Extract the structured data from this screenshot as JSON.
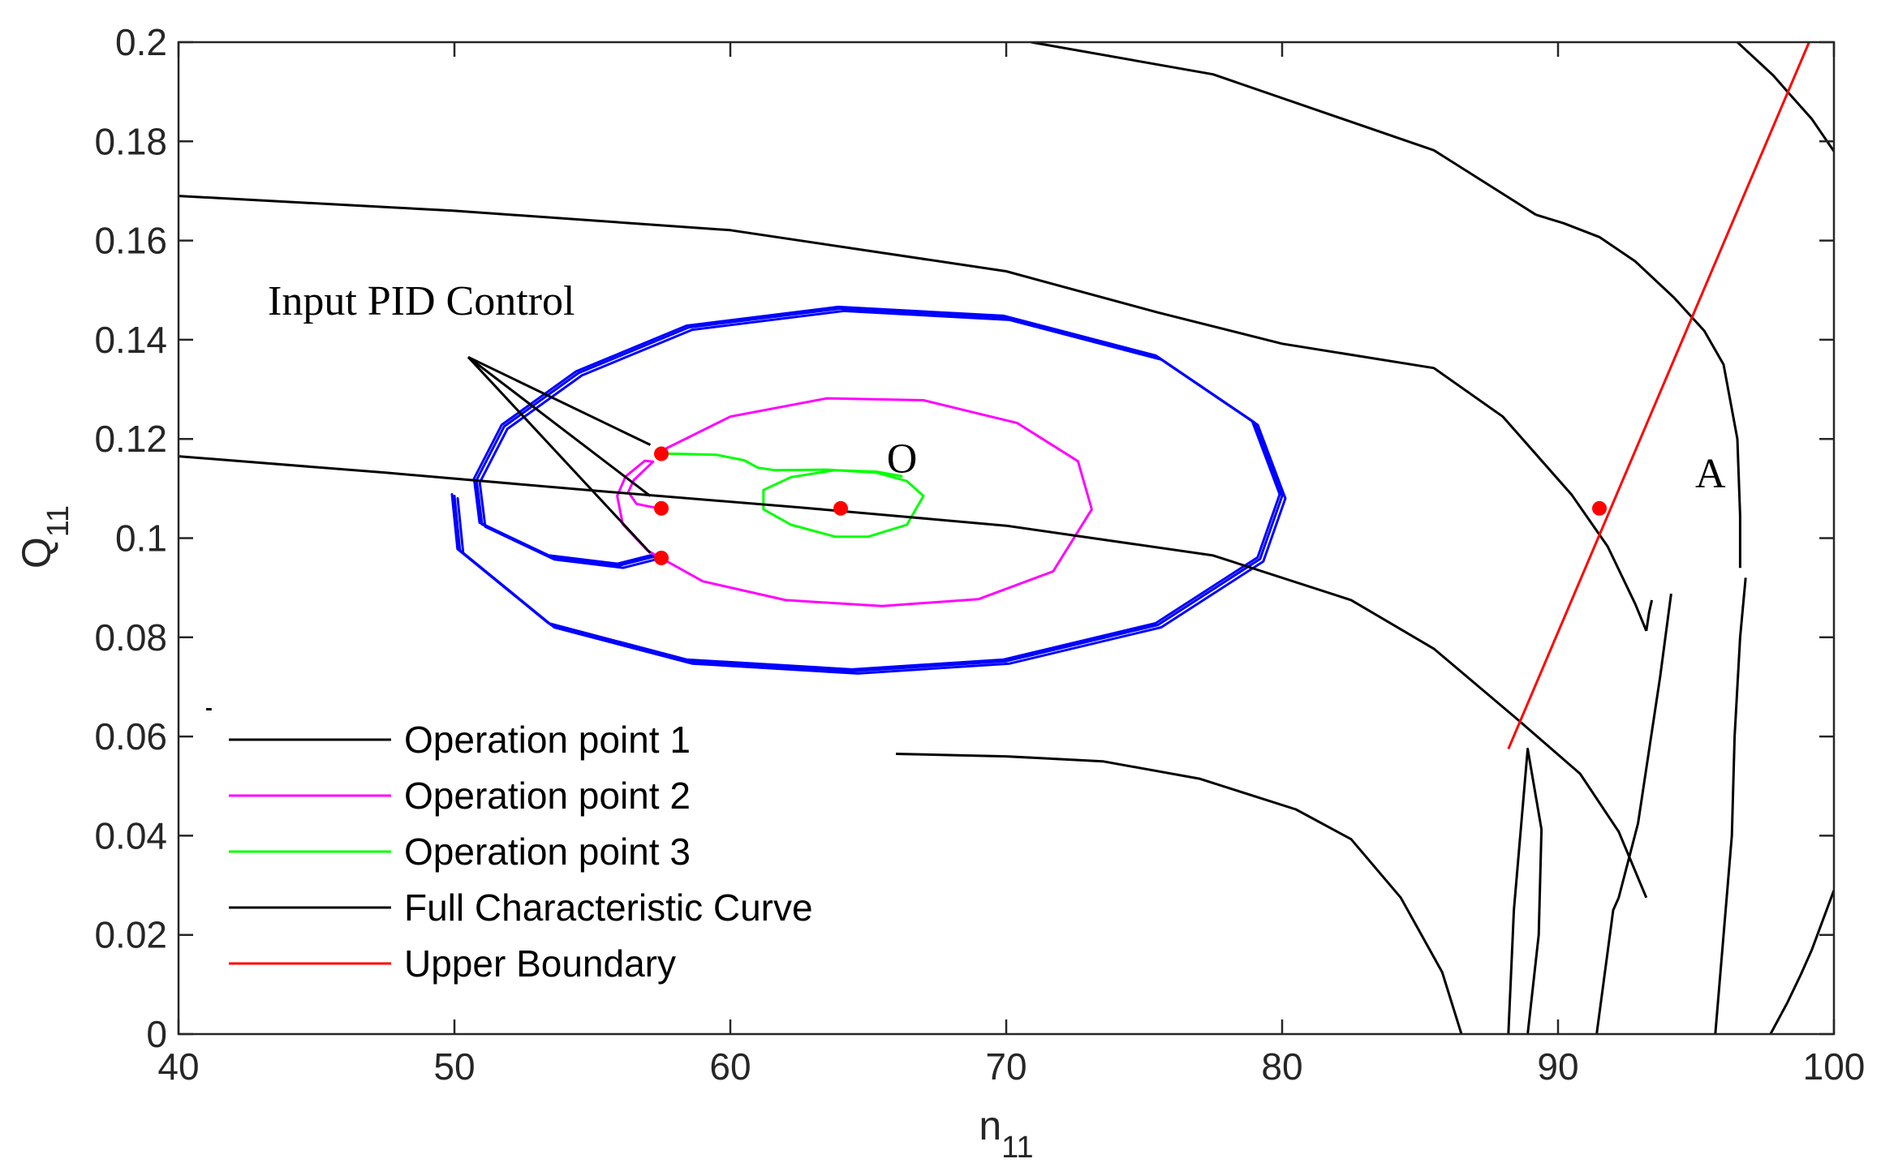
{
  "chart_data": {
    "type": "line",
    "title": "",
    "xlabel": "n",
    "xlabel_sub": "11",
    "ylabel": "Q",
    "ylabel_sub": "11",
    "xlim": [
      40,
      100
    ],
    "ylim": [
      0,
      0.2
    ],
    "grid": false,
    "legend_position": "bottom-left",
    "x_ticks": [
      {
        "value": 40,
        "label": "40"
      },
      {
        "value": 50,
        "label": "50"
      },
      {
        "value": 60,
        "label": "60"
      },
      {
        "value": 70,
        "label": "70"
      },
      {
        "value": 80,
        "label": "80"
      },
      {
        "value": 90,
        "label": "90"
      },
      {
        "value": 100,
        "label": "100"
      }
    ],
    "y_ticks": [
      {
        "value": 0,
        "label": "0"
      },
      {
        "value": 0.02,
        "label": "0.02"
      },
      {
        "value": 0.04,
        "label": "0.04"
      },
      {
        "value": 0.06,
        "label": "0.06"
      },
      {
        "value": 0.08,
        "label": "0.08"
      },
      {
        "value": 0.1,
        "label": "0.1"
      },
      {
        "value": 0.12,
        "label": "0.12"
      },
      {
        "value": 0.14,
        "label": "0.14"
      },
      {
        "value": 0.16,
        "label": "0.16"
      },
      {
        "value": 0.18,
        "label": "0.18"
      },
      {
        "value": 0.2,
        "label": "0.2"
      }
    ],
    "legend": [
      {
        "label": "Operation point 1",
        "color": "#000000"
      },
      {
        "label": "Operation point 2",
        "color": "#ff00ff"
      },
      {
        "label": "Operation point 3",
        "color": "#00ff00"
      },
      {
        "label": "Full Characteristic Curve",
        "color": "#000000"
      },
      {
        "label": "Upper Boundary",
        "color": "#ff0000"
      }
    ],
    "series": [
      {
        "name": "Operation point 1",
        "color": "#0000ff",
        "kind": "trajectory",
        "x": [
          57.5,
          57.2,
          56.0,
          53.5,
          51.0,
          50.8,
          51.8,
          54.5,
          58.5,
          64.0,
          70.0,
          75.5,
          79.0,
          80.0,
          79.2,
          75.5,
          70.0,
          64.5,
          58.5,
          53.5,
          50.2,
          50.0
        ],
        "y": [
          0.096,
          0.0962,
          0.0945,
          0.0962,
          0.1028,
          0.1117,
          0.1225,
          0.1333,
          0.1425,
          0.1463,
          0.1445,
          0.1365,
          0.1233,
          0.1085,
          0.0958,
          0.0825,
          0.0752,
          0.0732,
          0.0752,
          0.0825,
          0.0975,
          0.1085
        ]
      },
      {
        "name": "Operation point 2",
        "color": "#ff00ff",
        "kind": "trajectory",
        "x": [
          57.5,
          57.4,
          56.6,
          56.3,
          56.5,
          57.2,
          56.9,
          56.2,
          55.9,
          56.1,
          57.0,
          59.0,
          62.0,
          65.5,
          69.0,
          71.7,
          73.1,
          72.6,
          70.4,
          67.0,
          63.5,
          60.0,
          57.5
        ],
        "y": [
          0.106,
          0.106,
          0.1069,
          0.1093,
          0.1117,
          0.1154,
          0.1156,
          0.1124,
          0.1085,
          0.1028,
          0.0975,
          0.0913,
          0.0875,
          0.0863,
          0.0877,
          0.0933,
          0.1058,
          0.1155,
          0.1232,
          0.1278,
          0.1282,
          0.1245,
          0.1176
        ]
      },
      {
        "name": "Operation point 3",
        "color": "#00ff00",
        "kind": "trajectory",
        "x": [
          57.5,
          58.0,
          59.5,
          60.5,
          61.0,
          61.6,
          63.5,
          65.3,
          66.4,
          67.0,
          66.4,
          65.0,
          63.8,
          62.2,
          61.2,
          61.2,
          62.2,
          63.8,
          65.3,
          66.2
        ],
        "y": [
          0.117,
          0.117,
          0.1168,
          0.1157,
          0.1142,
          0.1137,
          0.1138,
          0.1132,
          0.1115,
          0.1085,
          0.1027,
          0.1003,
          0.1003,
          0.1027,
          0.1058,
          0.1097,
          0.1123,
          0.1137,
          0.1134,
          0.1125
        ]
      },
      {
        "name": "Full Characteristic Curve",
        "color": "#000000",
        "kind": "curves",
        "curves": [
          {
            "x": [
              40,
              47.5,
              55,
              62.5,
              70,
              77.5,
              82.5,
              85.5,
              88.5,
              90.8,
              92.2,
              93.2
            ],
            "y": [
              0.1165,
              0.1132,
              0.1096,
              0.1062,
              0.1025,
              0.0965,
              0.0875,
              0.0777,
              0.0636,
              0.0525,
              0.0408,
              0.0275
            ]
          },
          {
            "x": [
              40,
              50,
              60,
              70,
              75.5,
              80,
              85.5,
              88,
              90.5,
              91.8,
              92.8,
              93.2
            ],
            "y": [
              0.169,
              0.166,
              0.1621,
              0.1538,
              0.1455,
              0.1392,
              0.1343,
              0.1245,
              0.1087,
              0.0983,
              0.0867,
              0.0813
            ]
          },
          {
            "x": [
              93.2,
              93.3,
              93.4
            ],
            "y": [
              0.0813,
              0.085,
              0.0875
            ]
          },
          {
            "x": [
              41.0,
              41.2
            ],
            "y": [
              0.0655,
              0.0655
            ]
          },
          {
            "x": [
              70.9,
              77.5,
              85.5,
              89.2
            ],
            "y": [
              0.2,
              0.1935,
              0.1782,
              0.1652
            ]
          },
          {
            "x": [
              89.2,
              90.2,
              91.5,
              92.8,
              94.2,
              95.3,
              96.0,
              96.5,
              96.6,
              96.6
            ],
            "y": [
              0.1652,
              0.1635,
              0.1607,
              0.1558,
              0.1485,
              0.1418,
              0.135,
              0.12,
              0.1045,
              0.094
            ]
          },
          {
            "x": [
              66,
              70,
              73.5,
              77,
              80.5,
              82.5,
              84.3,
              85.8,
              86.5
            ],
            "y": [
              0.0565,
              0.056,
              0.055,
              0.0515,
              0.0453,
              0.0393,
              0.0275,
              0.0125,
              0.0
            ]
          },
          {
            "x": [
              88.2,
              88.4,
              88.9,
              89.4,
              89.3,
              88.9
            ],
            "y": [
              0.0,
              0.025,
              0.0575,
              0.0413,
              0.02,
              0.0
            ]
          },
          {
            "x": [
              91.4,
              92.0,
              92.2,
              92.9,
              93.7,
              94.1
            ],
            "y": [
              0.0,
              0.025,
              0.0275,
              0.0425,
              0.072,
              0.0888
            ]
          },
          {
            "x": [
              95.7,
              96.3,
              96.4,
              96.6,
              96.8
            ],
            "y": [
              0.0,
              0.04,
              0.06,
              0.08,
              0.092
            ]
          },
          {
            "x": [
              97.7,
              98.3,
              98.8,
              99.2,
              100
            ],
            "y": [
              0.0,
              0.0062,
              0.012,
              0.017,
              0.029
            ]
          },
          {
            "x": [
              96.5,
              97.8,
              98.4,
              99.2,
              100
            ],
            "y": [
              0.2,
              0.1933,
              0.1895,
              0.1845,
              0.178
            ]
          }
        ]
      },
      {
        "name": "Upper Boundary",
        "color": "#ff0000",
        "kind": "line",
        "x": [
          88.2,
          99.1
        ],
        "y": [
          0.0575,
          0.2
        ]
      }
    ],
    "operating_points": [
      {
        "x": 57.5,
        "y": 0.117
      },
      {
        "x": 57.5,
        "y": 0.106
      },
      {
        "x": 57.5,
        "y": 0.096
      },
      {
        "x": 64.0,
        "y": 0.106
      },
      {
        "x": 91.5,
        "y": 0.106
      }
    ],
    "annotations": {
      "pid_text": "Input PID Control",
      "pid_anchor": {
        "x": 50.5,
        "y": 0.1365
      },
      "pid_targets": [
        {
          "x": 57.1,
          "y": 0.1188
        },
        {
          "x": 57.1,
          "y": 0.1085
        },
        {
          "x": 57.1,
          "y": 0.097
        }
      ],
      "label_O": "O",
      "label_O_at": {
        "x": 66.2,
        "y": 0.1162
      },
      "label_A": "A",
      "label_A_at": {
        "x": 95.5,
        "y": 0.1132
      }
    }
  }
}
